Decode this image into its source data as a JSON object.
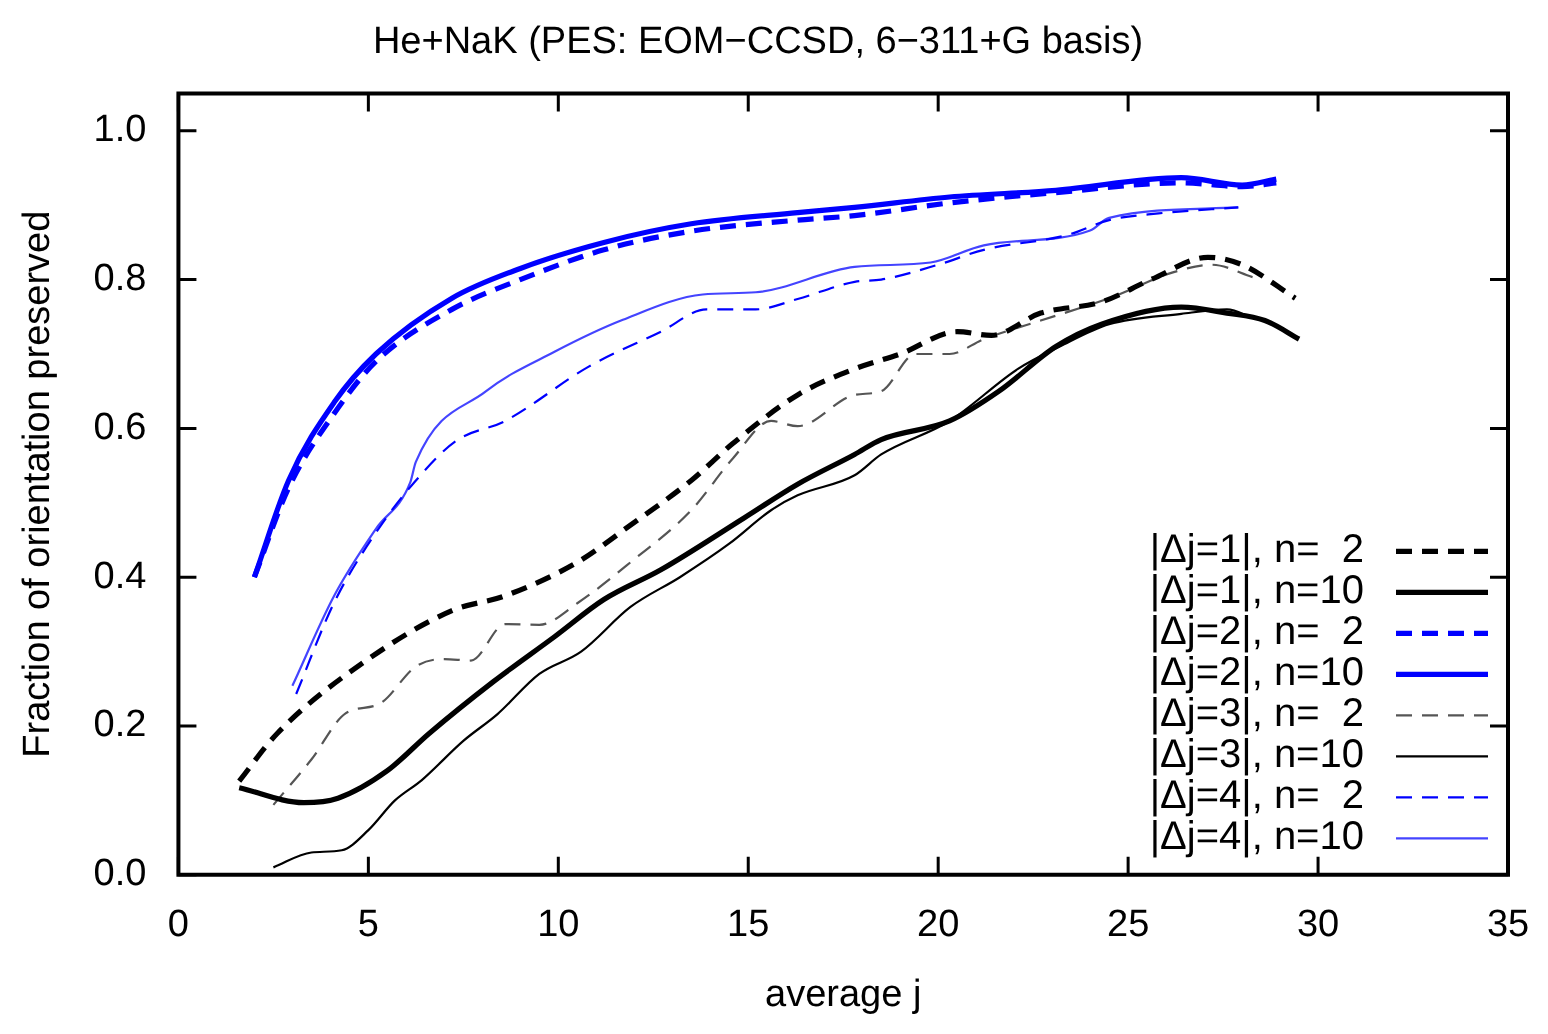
{
  "chart_data": {
    "type": "line",
    "title": "He+NaK (PES: EOM−CCSD, 6−311+G basis)",
    "xlabel": "average j",
    "ylabel": "Fraction of orientation preserved",
    "xlim": [
      0,
      35
    ],
    "xticks": [
      0,
      5,
      10,
      15,
      20,
      25,
      30,
      35
    ],
    "ylim": [
      0,
      1.05
    ],
    "yticks": [
      {
        "value": 0,
        "label": "0.0"
      },
      {
        "value": 0.2,
        "label": "0.2"
      },
      {
        "value": 0.4,
        "label": "0.4"
      },
      {
        "value": 0.6,
        "label": "0.6"
      },
      {
        "value": 0.8,
        "label": "0.8"
      },
      {
        "value": 1,
        "label": "1.0"
      }
    ],
    "grid": false,
    "legend": "bottom right",
    "marker": "none",
    "series": [
      {
        "name": "|Δj=1|, n=  2",
        "color": "#000000",
        "line_style": "dashed",
        "x": [
          1.6,
          2.6,
          5.0,
          7.2,
          8.6,
          10.5,
          11.9,
          13.5,
          14.6,
          16.3,
          17.8,
          19.0,
          20.5,
          21.4,
          22.7,
          24.3,
          25.6,
          27.1,
          28.0,
          29.4
        ],
        "values": [
          0.126,
          0.19,
          0.29,
          0.355,
          0.375,
          0.42,
          0.47,
          0.53,
          0.58,
          0.645,
          0.68,
          0.7,
          0.73,
          0.725,
          0.755,
          0.77,
          0.8,
          0.83,
          0.82,
          0.775
        ]
      },
      {
        "name": "|Δj=1|, n=10",
        "color": "#000000",
        "line_style": "solid",
        "x": [
          1.6,
          3.3,
          4.2,
          5.5,
          6.6,
          8.3,
          9.9,
          11.2,
          12.7,
          14.9,
          16.3,
          17.8,
          18.5,
          20.3,
          21.6,
          23.1,
          24.3,
          26.4,
          27.6,
          28.6,
          29.5
        ],
        "values": [
          0.117,
          0.097,
          0.103,
          0.14,
          0.19,
          0.26,
          0.32,
          0.37,
          0.41,
          0.48,
          0.525,
          0.565,
          0.585,
          0.61,
          0.65,
          0.71,
          0.74,
          0.763,
          0.755,
          0.745,
          0.72
        ]
      },
      {
        "name": "|Δj=2|, n=  2",
        "color": "#0000ff",
        "line_style": "dashed",
        "x": [
          2.0,
          2.9,
          4.1,
          5.2,
          7.2,
          9.0,
          11.2,
          13.5,
          16.3,
          17.8,
          20.3,
          23.1,
          26.4,
          28.0,
          28.9
        ],
        "values": [
          0.4,
          0.52,
          0.62,
          0.69,
          0.76,
          0.8,
          0.84,
          0.865,
          0.88,
          0.886,
          0.903,
          0.917,
          0.93,
          0.925,
          0.93
        ]
      },
      {
        "name": "|Δj=2|, n=10",
        "color": "#0000ff",
        "line_style": "solid",
        "x": [
          2.0,
          2.9,
          4.1,
          5.2,
          7.2,
          9.0,
          11.2,
          13.5,
          16.3,
          17.8,
          20.3,
          23.1,
          26.4,
          28.0,
          28.9
        ],
        "values": [
          0.4,
          0.53,
          0.635,
          0.7,
          0.775,
          0.815,
          0.85,
          0.875,
          0.89,
          0.897,
          0.911,
          0.92,
          0.937,
          0.927,
          0.935
        ]
      },
      {
        "name": "|Δj=3|, n=  2",
        "color": "#555555",
        "line_style": "dashed",
        "x": [
          2.5,
          3.5,
          4.4,
          5.3,
          6.25,
          7.0,
          7.7,
          8.6,
          9.5,
          10.5,
          11.9,
          13.5,
          14.6,
          15.6,
          16.3,
          17.8,
          18.5,
          19.4,
          20.3,
          21.2,
          22.7,
          24.5,
          26.2,
          27.2,
          28.3
        ],
        "values": [
          0.094,
          0.155,
          0.217,
          0.23,
          0.28,
          0.29,
          0.288,
          0.337,
          0.336,
          0.365,
          0.42,
          0.49,
          0.56,
          0.61,
          0.603,
          0.645,
          0.65,
          0.7,
          0.7,
          0.72,
          0.745,
          0.775,
          0.81,
          0.82,
          0.803
        ]
      },
      {
        "name": "|Δj=3|, n=10",
        "color": "#000000",
        "line_style": "solid",
        "x": [
          2.5,
          3.5,
          4.3,
          5.0,
          5.7,
          6.4,
          7.5,
          8.4,
          9.5,
          10.6,
          11.9,
          13.2,
          14.5,
          15.6,
          16.3,
          17.8,
          18.5,
          20.3,
          22.1,
          23.2,
          24.5,
          26.4,
          27.6,
          28.3
        ],
        "values": [
          0.01,
          0.03,
          0.033,
          0.06,
          0.1,
          0.127,
          0.18,
          0.216,
          0.27,
          0.3,
          0.36,
          0.4,
          0.445,
          0.49,
          0.51,
          0.537,
          0.565,
          0.61,
          0.68,
          0.71,
          0.74,
          0.754,
          0.76,
          0.748
        ]
      },
      {
        "name": "|Δj=4|, n=  2",
        "color": "#0000ff",
        "line_style": "dashed",
        "x": [
          3.1,
          4.1,
          5.2,
          6.2,
          7.3,
          8.6,
          10.8,
          12.7,
          13.9,
          15.2,
          16.3,
          17.8,
          18.5,
          20.0,
          21.2,
          23.4,
          24.5,
          25.8,
          27.9
        ],
        "values": [
          0.243,
          0.366,
          0.46,
          0.527,
          0.583,
          0.61,
          0.683,
          0.73,
          0.76,
          0.76,
          0.774,
          0.797,
          0.8,
          0.82,
          0.84,
          0.86,
          0.88,
          0.889,
          0.897
        ]
      },
      {
        "name": "|Δj=4|, n=10",
        "color": "#4444ff",
        "line_style": "solid",
        "x": [
          3.0,
          4.1,
          5.2,
          6.1,
          6.25,
          8.1,
          9.9,
          11.7,
          13.8,
          15.2,
          17.8,
          19.8,
          21.2,
          24.0,
          24.5,
          27.9
        ],
        "values": [
          0.254,
          0.375,
          0.465,
          0.527,
          0.555,
          0.65,
          0.703,
          0.746,
          0.78,
          0.783,
          0.817,
          0.823,
          0.846,
          0.866,
          0.883,
          0.897
        ]
      }
    ]
  }
}
